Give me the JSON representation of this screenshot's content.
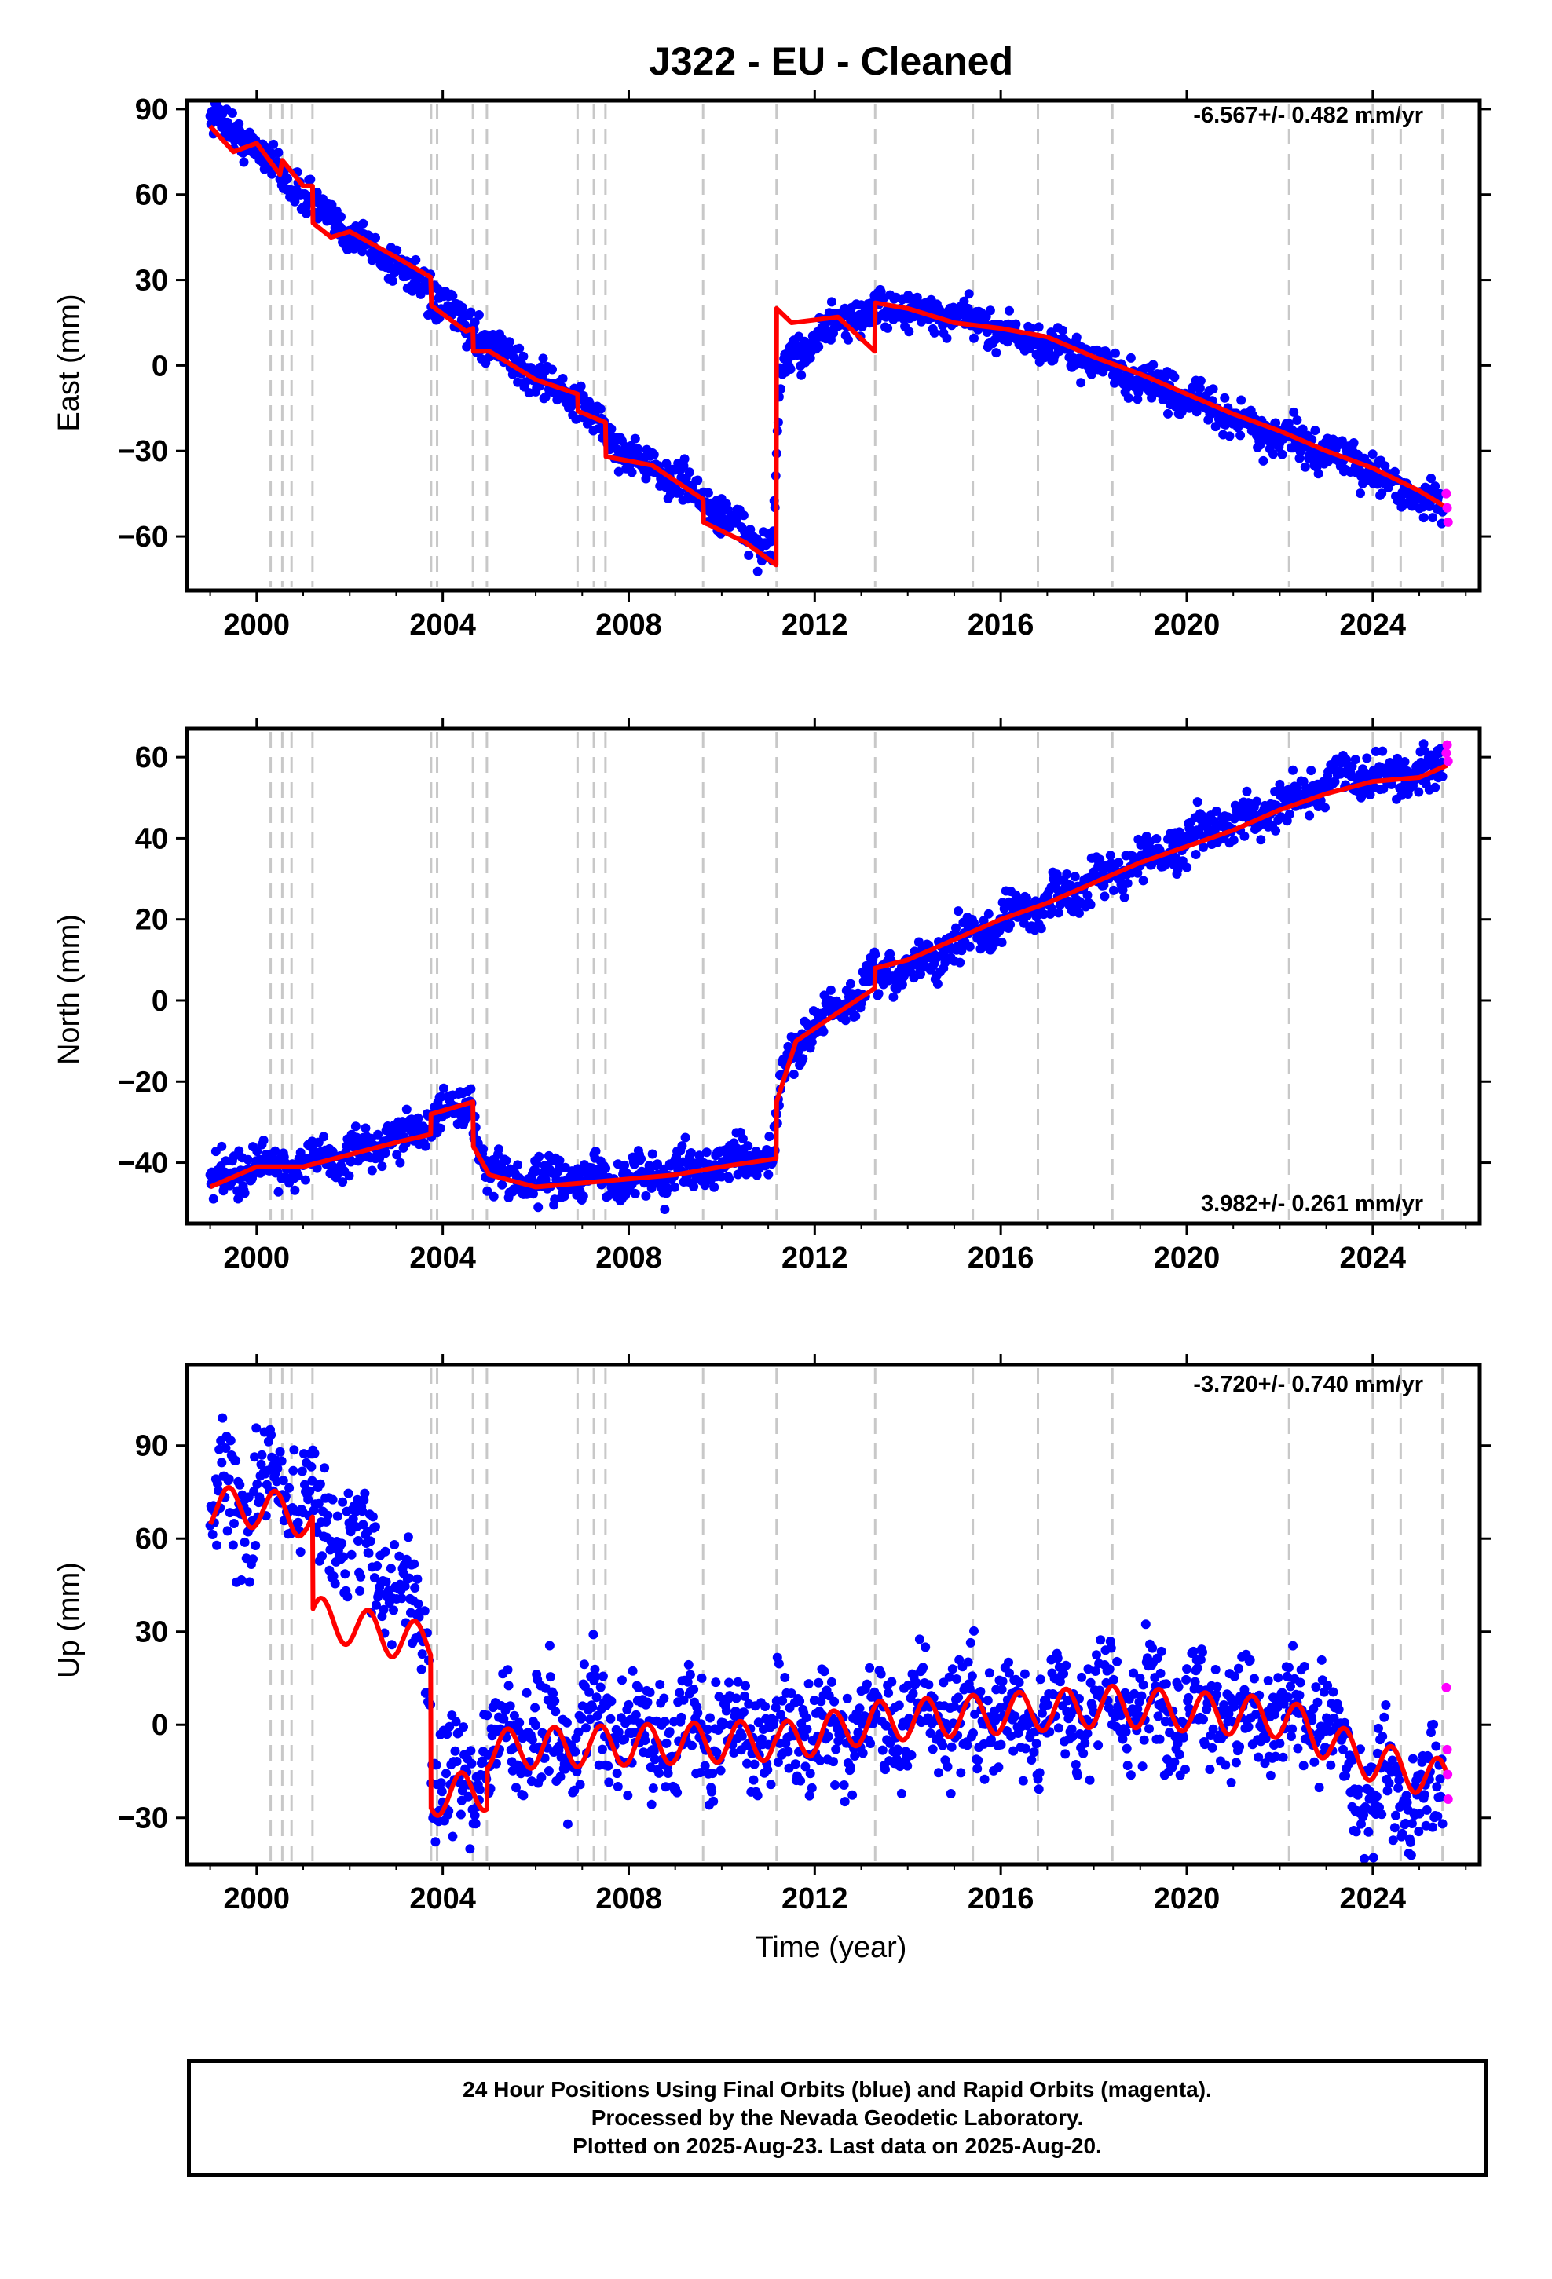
{
  "title": "J322  - EU - Cleaned",
  "xlabel": "Time (year)",
  "colors": {
    "final_orbits": "#0000ff",
    "rapid_orbits": "#ff00ff",
    "model": "#ff0000",
    "event_lines": "#c8c8c8"
  },
  "event_lines_years": [
    2000.3,
    2000.55,
    2000.75,
    2001.2,
    2003.75,
    2003.88,
    2004.65,
    2004.95,
    2006.9,
    2007.25,
    2007.5,
    2009.6,
    2011.18,
    2013.3,
    2015.4,
    2016.8,
    2018.4,
    2022.2,
    2024.0,
    2024.6,
    2025.5
  ],
  "chart_data": [
    {
      "type": "scatter",
      "ylabel": "East (mm)",
      "rate_label": "-6.567+/- 0.482 mm/yr",
      "xlim": [
        1998.5,
        2026.3
      ],
      "ylim": [
        -79,
        93
      ],
      "xticks": [
        2000,
        2004,
        2008,
        2012,
        2016,
        2020,
        2024
      ],
      "yticks": [
        -60,
        -30,
        0,
        30,
        60,
        90
      ],
      "ytick_labels": [
        "−60",
        "−30",
        "0",
        "30",
        "60",
        "90"
      ],
      "series": [
        {
          "name": "Final Orbits",
          "color": "#0000ff",
          "x": [
            1999.0,
            2000.0,
            2001.0,
            2002.0,
            2003.0,
            2003.9,
            2005.0,
            2006.0,
            2007.0,
            2008.0,
            2009.0,
            2010.0,
            2011.1,
            2011.25,
            2011.6,
            2012.5,
            2013.5,
            2014.5,
            2015.5,
            2016.5,
            2017.5,
            2018.5,
            2019.5,
            2020.5,
            2021.5,
            2022.5,
            2023.5,
            2024.5,
            2025.5
          ],
          "y": [
            88,
            76,
            60,
            46,
            36,
            22,
            8,
            -4,
            -14,
            -32,
            -40,
            -52,
            -66,
            -5,
            5,
            15,
            20,
            18,
            15,
            10,
            5,
            -2,
            -8,
            -15,
            -22,
            -28,
            -33,
            -42,
            -50
          ]
        },
        {
          "name": "Rapid Orbits",
          "color": "#ff00ff",
          "x": [
            2025.58,
            2025.6,
            2025.62
          ],
          "y": [
            -45,
            -50,
            -55
          ]
        }
      ],
      "model": {
        "x": [
          1999.0,
          1999.5,
          2000.0,
          2000.5,
          2000.55,
          2001.0,
          2001.2,
          2001.21,
          2001.6,
          2002.0,
          2003.0,
          2003.74,
          2003.76,
          2004.5,
          2004.65,
          2004.66,
          2005.0,
          2006.0,
          2006.9,
          2006.91,
          2007.5,
          2007.51,
          2008.5,
          2009.6,
          2009.61,
          2010.5,
          2011.17,
          2011.18,
          2011.5,
          2012.5,
          2013.29,
          2013.3,
          2014.0,
          2015.0,
          2016.0,
          2017.0,
          2018.0,
          2019.0,
          2020.0,
          2021.0,
          2022.0,
          2023.0,
          2024.0,
          2025.0,
          2025.6
        ],
        "y": [
          84,
          75,
          78,
          67,
          72,
          63,
          63,
          50,
          45,
          47,
          38,
          31,
          21,
          12,
          13,
          5,
          5,
          -5,
          -10,
          -16,
          -20,
          -32,
          -35,
          -47,
          -55,
          -62,
          -70,
          20,
          15,
          17,
          5,
          22,
          20,
          15,
          13,
          10,
          3,
          -3,
          -10,
          -17,
          -23,
          -30,
          -36,
          -44,
          -50
        ]
      }
    },
    {
      "type": "scatter",
      "ylabel": "North (mm)",
      "rate_label": "3.982+/- 0.261 mm/yr",
      "xlim": [
        1998.5,
        2026.3
      ],
      "ylim": [
        -55,
        67
      ],
      "xticks": [
        2000,
        2004,
        2008,
        2012,
        2016,
        2020,
        2024
      ],
      "yticks": [
        -40,
        -20,
        0,
        20,
        40,
        60
      ],
      "ytick_labels": [
        "−40",
        "−20",
        "0",
        "20",
        "40",
        "60"
      ],
      "series": [
        {
          "name": "Final Orbits",
          "color": "#0000ff",
          "x": [
            1999.0,
            2000.0,
            2001.0,
            2002.0,
            2003.0,
            2003.9,
            2004.6,
            2005.0,
            2006.0,
            2007.0,
            2008.0,
            2009.0,
            2010.0,
            2011.1,
            2011.25,
            2011.6,
            2012.5,
            2013.5,
            2014.5,
            2015.5,
            2016.5,
            2017.5,
            2018.5,
            2019.5,
            2020.5,
            2021.5,
            2022.5,
            2023.5,
            2024.5,
            2025.5
          ],
          "y": [
            -44,
            -41,
            -40,
            -38,
            -34,
            -28,
            -26,
            -43,
            -45,
            -44,
            -44,
            -42,
            -40,
            -39,
            -22,
            -10,
            -2,
            6,
            10,
            17,
            22,
            27,
            32,
            37,
            42,
            46,
            51,
            55,
            55,
            58
          ]
        },
        {
          "name": "Rapid Orbits",
          "color": "#ff00ff",
          "x": [
            2025.58,
            2025.6,
            2025.62
          ],
          "y": [
            61,
            63,
            59
          ]
        }
      ],
      "model": {
        "x": [
          1999.0,
          2000.0,
          2001.0,
          2002.0,
          2003.0,
          2003.74,
          2003.75,
          2004.65,
          2004.66,
          2005.0,
          2006.0,
          2007.0,
          2008.0,
          2009.0,
          2010.0,
          2011.17,
          2011.18,
          2011.6,
          2012.5,
          2013.29,
          2013.3,
          2014.0,
          2015.0,
          2016.0,
          2017.0,
          2018.0,
          2019.0,
          2020.0,
          2021.0,
          2022.0,
          2023.0,
          2024.0,
          2025.0,
          2025.6
        ],
        "y": [
          -46,
          -41,
          -41,
          -38,
          -35,
          -33,
          -28,
          -25,
          -36,
          -43,
          -46,
          -45,
          -44,
          -43,
          -41,
          -39,
          -25,
          -10,
          -3,
          3,
          8,
          10,
          15,
          20,
          24,
          29,
          34,
          38,
          42,
          47,
          51,
          54,
          55,
          58
        ]
      }
    },
    {
      "type": "scatter",
      "ylabel": "Up (mm)",
      "rate_label": "-3.720+/- 0.740 mm/yr",
      "xlim": [
        1998.5,
        2026.3
      ],
      "ylim": [
        -45,
        116
      ],
      "xticks": [
        2000,
        2004,
        2008,
        2012,
        2016,
        2020,
        2024
      ],
      "yticks": [
        -30,
        0,
        30,
        60,
        90
      ],
      "ytick_labels": [
        "−30",
        "0",
        "30",
        "60",
        "90"
      ],
      "series": [
        {
          "name": "Final Orbits",
          "color": "#0000ff",
          "x": [
            1999.0,
            2000.0,
            2000.7,
            2001.5,
            2002.5,
            2003.3,
            2003.7,
            2003.8,
            2004.5,
            2005.5,
            2006.5,
            2007.5,
            2008.5,
            2009.5,
            2010.5,
            2011.5,
            2012.5,
            2013.5,
            2014.5,
            2015.5,
            2016.5,
            2017.5,
            2018.5,
            2019.5,
            2020.5,
            2021.5,
            2022.5,
            2023.0,
            2023.5,
            2024.5,
            2025.5
          ],
          "y": [
            70,
            72,
            78,
            65,
            55,
            38,
            30,
            -20,
            -18,
            -3,
            -4,
            -2,
            -5,
            -3,
            -2,
            -2,
            -1,
            2,
            2,
            3,
            4,
            5,
            6,
            6,
            5,
            3,
            2,
            0,
            -18,
            -20,
            -22
          ]
        },
        {
          "name": "Rapid Orbits",
          "color": "#ff00ff",
          "x": [
            2025.58,
            2025.6,
            2025.61,
            2025.62
          ],
          "y": [
            12,
            -8,
            -16,
            -24
          ]
        }
      ],
      "model": {
        "x": [
          1999.0,
          2000.0,
          2001.0,
          2001.2,
          2001.21,
          2002.0,
          2003.0,
          2003.74,
          2003.75,
          2004.95,
          2004.96,
          2011.18,
          2011.19,
          2013.3,
          2018.4,
          2022.2,
          2022.6,
          2024.0,
          2025.6
        ],
        "y": [
          70,
          70,
          67,
          65,
          35,
          32,
          28,
          26,
          -23,
          -21,
          -8,
          -5,
          -6,
          1,
          6,
          2,
          -2,
          -12,
          -18
        ]
      },
      "model_amplitude": 6.5
    }
  ],
  "caption": {
    "line1": "24 Hour Positions Using Final Orbits (blue) and Rapid Orbits (magenta).",
    "line2": "Processed by the Nevada Geodetic Laboratory.",
    "line3": "Plotted on 2025-Aug-23. Last data on 2025-Aug-20."
  }
}
